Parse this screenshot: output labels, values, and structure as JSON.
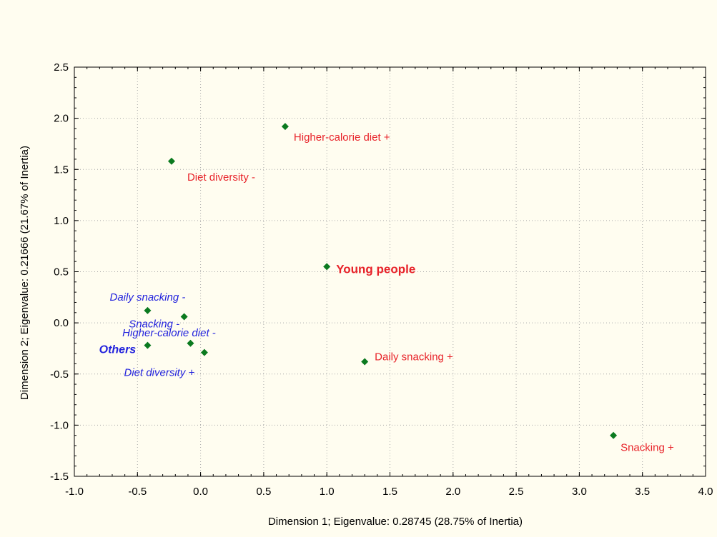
{
  "chart_data": {
    "type": "scatter",
    "xlabel": "Dimension 1; Eigenvalue: 0.28745 (28.75% of Inertia)",
    "ylabel": "Dimension 2; Eigenvalue: 0.21666 (21.67% of Inertia)",
    "xlim": [
      -1.0,
      4.0
    ],
    "ylim": [
      -1.5,
      2.5
    ],
    "xticks": [
      "-1.0",
      "-0.5",
      "0.0",
      "0.5",
      "1.0",
      "1.5",
      "2.0",
      "2.5",
      "3.0",
      "3.5",
      "4.0"
    ],
    "yticks": [
      "-1.5",
      "-1.0",
      "-0.5",
      "0.0",
      "0.5",
      "1.0",
      "1.5",
      "2.0",
      "2.5"
    ],
    "grid": true,
    "marker": "diamond",
    "marker_color": "#0b7a1f",
    "points": [
      {
        "x": 0.67,
        "y": 1.92,
        "label": "Higher-calorie diet +",
        "color": "#e8232a",
        "style": "normal"
      },
      {
        "x": -0.23,
        "y": 1.58,
        "label": "Diet diversity -",
        "color": "#e8232a",
        "style": "normal"
      },
      {
        "x": 1.0,
        "y": 0.55,
        "label": "Young people",
        "color": "#e8232a",
        "style": "bold"
      },
      {
        "x": 1.3,
        "y": -0.38,
        "label": "Daily snacking +",
        "color": "#e8232a",
        "style": "normal"
      },
      {
        "x": 3.27,
        "y": -1.1,
        "label": "Snacking +",
        "color": "#e8232a",
        "style": "normal"
      },
      {
        "x": -0.42,
        "y": 0.12,
        "label": "Daily snacking -",
        "color": "#2222dd",
        "style": "italic"
      },
      {
        "x": -0.13,
        "y": 0.06,
        "label": "Snacking -",
        "color": "#2222dd",
        "style": "italic"
      },
      {
        "x": -0.08,
        "y": -0.2,
        "label": "Higher-calorie diet -",
        "color": "#2222dd",
        "style": "italic"
      },
      {
        "x": -0.42,
        "y": -0.22,
        "label": "Others",
        "color": "#2222dd",
        "style": "bold-italic"
      },
      {
        "x": 0.03,
        "y": -0.29,
        "label": "Diet diversity +",
        "color": "#2222dd",
        "style": "italic"
      }
    ]
  }
}
